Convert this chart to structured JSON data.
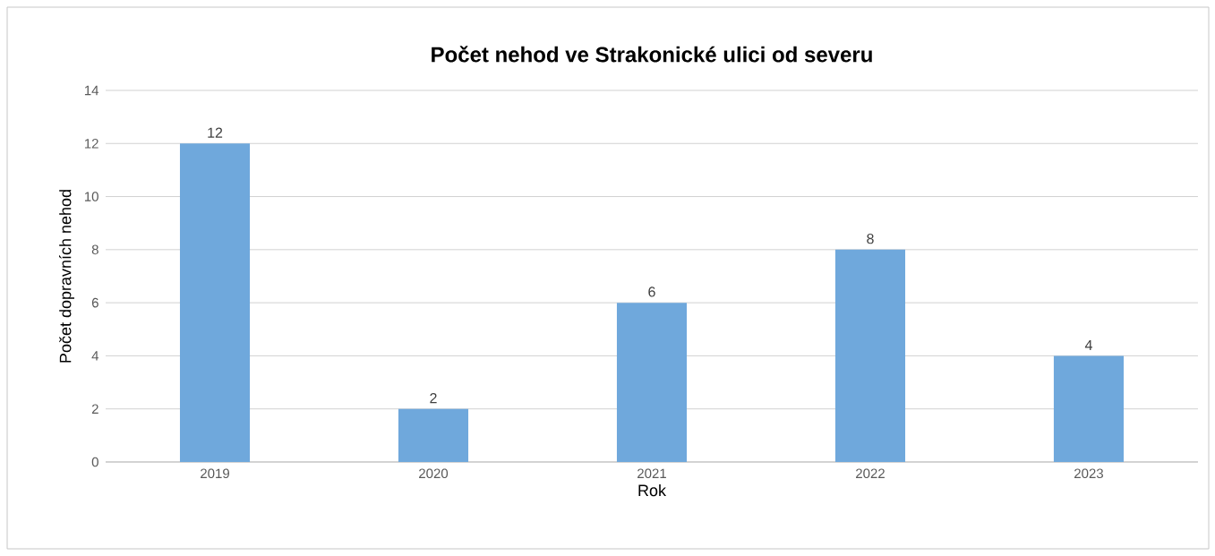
{
  "chart_data": {
    "type": "bar",
    "title": "Počet nehod ve Strakonické ulici od severu",
    "xlabel": "Rok",
    "ylabel": "Počet dopravních nehod",
    "categories": [
      "2019",
      "2020",
      "2021",
      "2022",
      "2023"
    ],
    "values": [
      12,
      2,
      6,
      8,
      4
    ],
    "color": "#6fa8dc",
    "ylim": [
      0,
      14
    ],
    "yticks": [
      0,
      2,
      4,
      6,
      8,
      10,
      12,
      14
    ],
    "grid": "y",
    "data_labels": true
  }
}
